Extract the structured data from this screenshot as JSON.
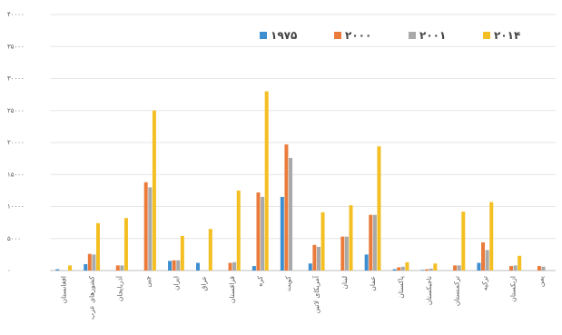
{
  "chart_data": {
    "type": "bar",
    "title": "",
    "xlabel": "",
    "ylabel": "",
    "ylim": [
      0,
      40000
    ],
    "y_ticks": [
      0,
      5000,
      10000,
      15000,
      20000,
      25000,
      30000,
      35000,
      40000
    ],
    "y_tick_labels": [
      "۰",
      "۵۰۰۰",
      "۱۰۰۰۰",
      "۱۵۰۰۰",
      "۲۰۰۰۰",
      "۲۵۰۰۰",
      "۳۰۰۰۰",
      "۳۵۰۰۰",
      "۴۰۰۰۰"
    ],
    "grid": true,
    "legend_position": "top-right",
    "categories": [
      "افغانستان",
      "کشورهای عرب",
      "آذربایجان",
      "چین",
      "ایران",
      "عراق",
      "قزاقستان",
      "کره",
      "کویت",
      "آمریکای لاتین",
      "لبنان",
      "عمان",
      "پاکستان",
      "تاجیکستان",
      "ترکمنستان",
      "ترکیه",
      "ازبکستان",
      "یمن"
    ],
    "series": [
      {
        "name": "۱۹۷۵",
        "color": "#3e8fd0",
        "values": [
          200,
          1000,
          0,
          0,
          1500,
          1200,
          0,
          700,
          11500,
          1100,
          0,
          2500,
          200,
          100,
          0,
          1200,
          0,
          0
        ]
      },
      {
        "name": "۲۰۰۰",
        "color": "#ea7b3b",
        "values": [
          0,
          2600,
          800,
          13800,
          1600,
          0,
          1200,
          12200,
          19700,
          4000,
          5300,
          8700,
          500,
          200,
          800,
          4400,
          700,
          700
        ]
      },
      {
        "name": "۲۰۰۱",
        "color": "#a9a9a9",
        "values": [
          0,
          2500,
          800,
          13000,
          1600,
          0,
          1300,
          11500,
          17600,
          3700,
          5300,
          8700,
          600,
          300,
          800,
          3200,
          800,
          600
        ]
      },
      {
        "name": "۲۰۱۴",
        "color": "#f3bf22",
        "values": [
          800,
          7400,
          8200,
          25000,
          5400,
          6500,
          12500,
          28000,
          0,
          9100,
          10200,
          19400,
          1300,
          1100,
          9200,
          10700,
          2300,
          0
        ]
      }
    ]
  }
}
